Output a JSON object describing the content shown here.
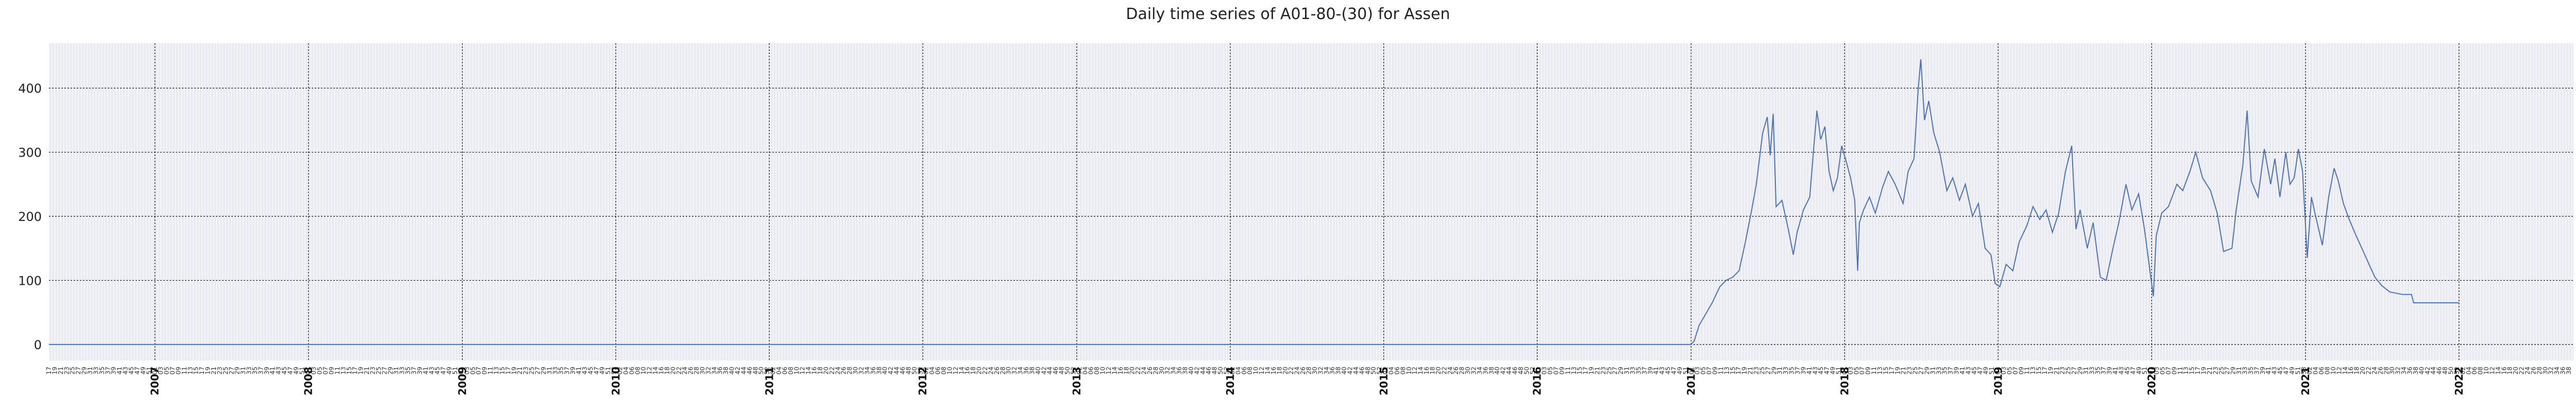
{
  "chart_data": {
    "type": "line",
    "title": "Daily time series of A01-80-(30) for Assen",
    "xlabel": "",
    "ylabel": "",
    "x_range": [
      "2006-04-24",
      "2022-09-30"
    ],
    "ylim": [
      -25,
      470
    ],
    "y_ticks": [
      0,
      100,
      200,
      300,
      400
    ],
    "year_ticks": [
      "2007",
      "2008",
      "2009",
      "2010",
      "2011",
      "2012",
      "2013",
      "2014",
      "2015",
      "2016",
      "2017",
      "2018",
      "2019",
      "2020",
      "2021",
      "2022"
    ],
    "grid": true,
    "legend": "none",
    "colors": {
      "line": "#4c72b0",
      "plot_background": "#eaeaf2",
      "major_grid": "#000000",
      "minor_grid": "#ffffff"
    },
    "series": [
      {
        "points": [
          [
            "2006-04-24",
            0
          ],
          [
            "2016-12-31",
            0
          ],
          [
            "2017-01-08",
            5
          ],
          [
            "2017-01-20",
            30
          ],
          [
            "2017-02-05",
            48
          ],
          [
            "2017-02-20",
            65
          ],
          [
            "2017-03-10",
            90
          ],
          [
            "2017-03-25",
            100
          ],
          [
            "2017-04-10",
            105
          ],
          [
            "2017-04-25",
            115
          ],
          [
            "2017-05-10",
            160
          ],
          [
            "2017-05-25",
            210
          ],
          [
            "2017-06-05",
            250
          ],
          [
            "2017-06-20",
            330
          ],
          [
            "2017-07-01",
            355
          ],
          [
            "2017-07-08",
            295
          ],
          [
            "2017-07-15",
            360
          ],
          [
            "2017-07-22",
            215
          ],
          [
            "2017-08-05",
            225
          ],
          [
            "2017-08-20",
            180
          ],
          [
            "2017-09-01",
            140
          ],
          [
            "2017-09-10",
            175
          ],
          [
            "2017-09-25",
            210
          ],
          [
            "2017-10-10",
            230
          ],
          [
            "2017-10-20",
            310
          ],
          [
            "2017-10-27",
            365
          ],
          [
            "2017-11-05",
            320
          ],
          [
            "2017-11-15",
            340
          ],
          [
            "2017-11-25",
            270
          ],
          [
            "2017-12-05",
            240
          ],
          [
            "2017-12-15",
            260
          ],
          [
            "2017-12-25",
            310
          ],
          [
            "2018-01-05",
            285
          ],
          [
            "2018-01-15",
            260
          ],
          [
            "2018-01-25",
            225
          ],
          [
            "2018-02-01",
            115
          ],
          [
            "2018-02-05",
            190
          ],
          [
            "2018-02-15",
            210
          ],
          [
            "2018-03-01",
            230
          ],
          [
            "2018-03-15",
            205
          ],
          [
            "2018-04-01",
            245
          ],
          [
            "2018-04-15",
            270
          ],
          [
            "2018-05-01",
            250
          ],
          [
            "2018-05-20",
            220
          ],
          [
            "2018-06-01",
            270
          ],
          [
            "2018-06-15",
            290
          ],
          [
            "2018-06-25",
            400
          ],
          [
            "2018-07-01",
            445
          ],
          [
            "2018-07-10",
            350
          ],
          [
            "2018-07-20",
            380
          ],
          [
            "2018-08-01",
            330
          ],
          [
            "2018-08-15",
            300
          ],
          [
            "2018-09-01",
            240
          ],
          [
            "2018-09-15",
            260
          ],
          [
            "2018-10-01",
            225
          ],
          [
            "2018-10-15",
            250
          ],
          [
            "2018-11-01",
            200
          ],
          [
            "2018-11-15",
            220
          ],
          [
            "2018-12-01",
            150
          ],
          [
            "2018-12-15",
            140
          ],
          [
            "2018-12-25",
            95
          ],
          [
            "2019-01-05",
            90
          ],
          [
            "2019-01-20",
            125
          ],
          [
            "2019-02-05",
            115
          ],
          [
            "2019-02-20",
            160
          ],
          [
            "2019-03-10",
            185
          ],
          [
            "2019-03-25",
            215
          ],
          [
            "2019-04-10",
            195
          ],
          [
            "2019-04-25",
            210
          ],
          [
            "2019-05-10",
            175
          ],
          [
            "2019-05-25",
            205
          ],
          [
            "2019-06-10",
            270
          ],
          [
            "2019-06-25",
            310
          ],
          [
            "2019-07-05",
            180
          ],
          [
            "2019-07-15",
            210
          ],
          [
            "2019-08-01",
            150
          ],
          [
            "2019-08-15",
            190
          ],
          [
            "2019-09-01",
            105
          ],
          [
            "2019-09-15",
            100
          ],
          [
            "2019-10-01",
            150
          ],
          [
            "2019-10-15",
            190
          ],
          [
            "2019-11-01",
            250
          ],
          [
            "2019-11-15",
            210
          ],
          [
            "2019-12-01",
            235
          ],
          [
            "2019-12-15",
            180
          ],
          [
            "2019-12-28",
            115
          ],
          [
            "2020-01-05",
            75
          ],
          [
            "2020-01-12",
            170
          ],
          [
            "2020-01-25",
            205
          ],
          [
            "2020-02-10",
            215
          ],
          [
            "2020-03-01",
            250
          ],
          [
            "2020-03-15",
            240
          ],
          [
            "2020-04-01",
            270
          ],
          [
            "2020-04-15",
            300
          ],
          [
            "2020-05-01",
            260
          ],
          [
            "2020-05-20",
            240
          ],
          [
            "2020-06-05",
            205
          ],
          [
            "2020-06-20",
            145
          ],
          [
            "2020-07-10",
            150
          ],
          [
            "2020-07-20",
            210
          ],
          [
            "2020-08-05",
            280
          ],
          [
            "2020-08-15",
            365
          ],
          [
            "2020-08-25",
            255
          ],
          [
            "2020-09-10",
            230
          ],
          [
            "2020-09-25",
            305
          ],
          [
            "2020-10-10",
            250
          ],
          [
            "2020-10-20",
            290
          ],
          [
            "2020-11-01",
            230
          ],
          [
            "2020-11-15",
            300
          ],
          [
            "2020-11-25",
            250
          ],
          [
            "2020-12-05",
            260
          ],
          [
            "2020-12-15",
            305
          ],
          [
            "2020-12-25",
            270
          ],
          [
            "2021-01-05",
            135
          ],
          [
            "2021-01-15",
            230
          ],
          [
            "2021-01-25",
            200
          ],
          [
            "2021-02-10",
            155
          ],
          [
            "2021-02-25",
            230
          ],
          [
            "2021-03-10",
            275
          ],
          [
            "2021-03-20",
            255
          ],
          [
            "2021-04-01",
            220
          ],
          [
            "2021-04-15",
            195
          ],
          [
            "2021-05-01",
            170
          ],
          [
            "2021-05-15",
            150
          ],
          [
            "2021-06-01",
            125
          ],
          [
            "2021-06-15",
            105
          ],
          [
            "2021-07-01",
            92
          ],
          [
            "2021-07-20",
            82
          ],
          [
            "2021-08-20",
            78
          ],
          [
            "2021-09-10",
            78
          ],
          [
            "2021-09-15",
            65
          ],
          [
            "2021-12-31",
            65
          ],
          [
            "2022-01-01",
            65
          ]
        ]
      }
    ]
  }
}
